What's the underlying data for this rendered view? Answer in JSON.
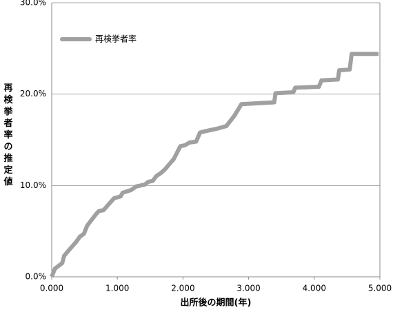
{
  "chart_data": {
    "type": "line",
    "xlabel": "出所後の期間(年)",
    "ylabel": "再検挙者率の推定値",
    "x": [
      0,
      0.05,
      0.16,
      0.19,
      0.26,
      0.37,
      0.43,
      0.49,
      0.54,
      0.68,
      0.72,
      0.79,
      0.95,
      1.05,
      1.08,
      1.21,
      1.29,
      1.42,
      1.47,
      1.54,
      1.59,
      1.67,
      1.73,
      1.8,
      1.86,
      1.96,
      2.03,
      2.1,
      2.2,
      2.26,
      2.38,
      2.51,
      2.66,
      2.78,
      2.84,
      2.89,
      3.39,
      3.41,
      3.68,
      3.71,
      4.07,
      4.11,
      4.36,
      4.38,
      4.54,
      4.57,
      4.98
    ],
    "series": [
      {
        "name": "再検挙者率",
        "color": "#a0a0a0",
        "values": [
          0,
          0.9,
          1.5,
          2.3,
          2.9,
          3.8,
          4.4,
          4.7,
          5.6,
          6.9,
          7.2,
          7.3,
          8.6,
          8.8,
          9.2,
          9.5,
          9.9,
          10.1,
          10.4,
          10.5,
          11.0,
          11.4,
          11.8,
          12.4,
          12.9,
          14.3,
          14.4,
          14.7,
          14.8,
          15.8,
          16.0,
          16.2,
          16.5,
          17.6,
          18.3,
          18.9,
          19.1,
          20.1,
          20.2,
          20.7,
          20.8,
          21.5,
          21.6,
          22.6,
          22.7,
          24.4,
          24.4
        ]
      }
    ],
    "xlim": [
      0,
      5
    ],
    "xticks": [
      {
        "value": 0,
        "label": "0.000"
      },
      {
        "value": 1,
        "label": "1.000"
      },
      {
        "value": 2,
        "label": "2.000"
      },
      {
        "value": 3,
        "label": "3.000"
      },
      {
        "value": 4,
        "label": "4.000"
      },
      {
        "value": 5,
        "label": "5.000"
      }
    ],
    "ylim": [
      0,
      30
    ],
    "yticks": [
      {
        "value": 0,
        "label": "0.0%"
      },
      {
        "value": 10,
        "label": "10.0%"
      },
      {
        "value": 20,
        "label": "20.0%"
      },
      {
        "value": 30,
        "label": "30.0%"
      }
    ],
    "grid": true,
    "legend": "upper left"
  }
}
